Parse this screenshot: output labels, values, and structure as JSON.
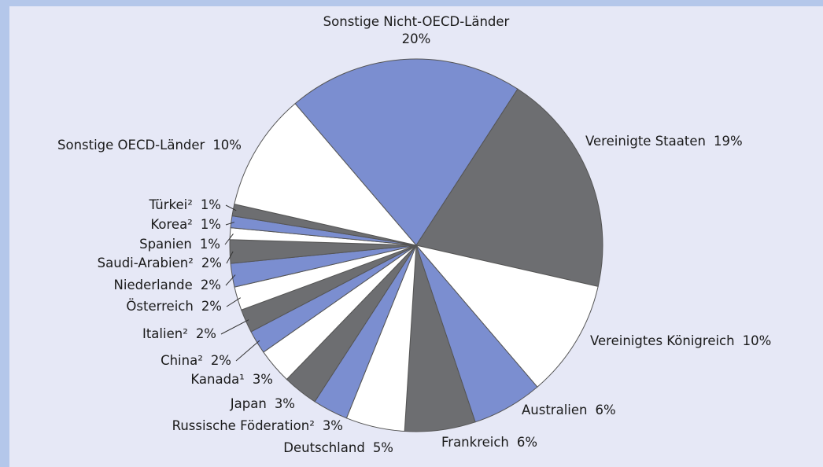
{
  "chart_data": {
    "type": "pie",
    "categories": [
      "Sonstige Nicht-OECD-Länder",
      "Vereinigte Staaten",
      "Vereinigtes Königreich",
      "Australien",
      "Frankreich",
      "Deutschland",
      "Russische Föderation²",
      "Japan",
      "Kanada¹",
      "China²",
      "Italien²",
      "Österreich",
      "Niederlande",
      "Saudi-Arabien²",
      "Spanien",
      "Korea²",
      "Türkei²",
      "Sonstige OECD-Länder"
    ],
    "values": [
      20,
      19,
      10,
      6,
      6,
      5,
      3,
      3,
      3,
      2,
      2,
      2,
      2,
      2,
      1,
      1,
      1,
      10
    ],
    "value_labels": [
      "20%",
      "19%",
      "10%",
      "6%",
      "6%",
      "5%",
      "3%",
      "3%",
      "3%",
      "2%",
      "2%",
      "2%",
      "2%",
      "2%",
      "1%",
      "1%",
      "1%",
      "10%"
    ],
    "colors": [
      "#7b8ed0",
      "#6d6e71",
      "#ffffff",
      "#7b8ed0",
      "#6d6e71",
      "#ffffff",
      "#7b8ed0",
      "#6d6e71",
      "#ffffff",
      "#7b8ed0",
      "#6d6e71",
      "#ffffff",
      "#7b8ed0",
      "#6d6e71",
      "#ffffff",
      "#7b8ed0",
      "#6d6e71",
      "#ffffff"
    ]
  }
}
